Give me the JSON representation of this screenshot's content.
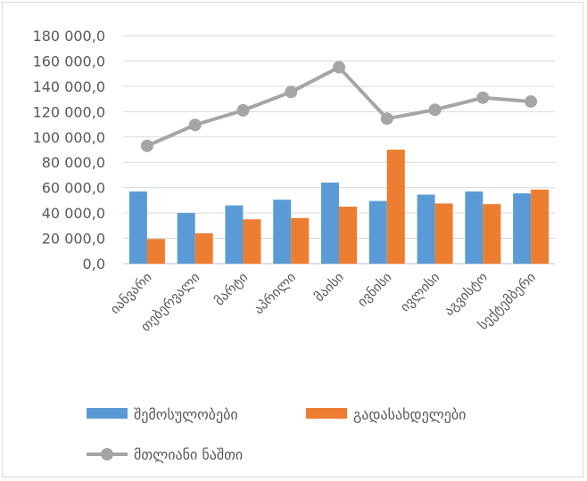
{
  "chart_data": {
    "type": "bar+line",
    "categories": [
      "იანვარი",
      "თებერვალი",
      "მარტი",
      "აპრილი",
      "მაისი",
      "ივნისი",
      "ივლისი",
      "აგვისტო",
      "სექტემბერი"
    ],
    "series": [
      {
        "name": "შემოსულობები",
        "type": "bar",
        "color": "#5b9bd5",
        "values": [
          57000,
          40000,
          46000,
          50500,
          64000,
          49500,
          54500,
          57000,
          55500
        ]
      },
      {
        "name": "გადასახდელები",
        "type": "bar",
        "color": "#ed7d31",
        "values": [
          19500,
          24000,
          35000,
          36000,
          45000,
          90000,
          47500,
          47000,
          58500
        ]
      },
      {
        "name": "მთლიანი ნაშთი",
        "type": "line",
        "color": "#a5a5a5",
        "values": [
          93000,
          109500,
          121000,
          135500,
          155000,
          114500,
          121500,
          131000,
          128000
        ]
      }
    ],
    "ylim": [
      0,
      180000
    ],
    "yticks": [
      0,
      20000,
      40000,
      60000,
      80000,
      100000,
      120000,
      140000,
      160000,
      180000
    ],
    "ytick_labels": [
      "0,0",
      "20 000,0",
      "40 000,0",
      "60 000,0",
      "80 000,0",
      "100 000,0",
      "120 000,0",
      "140 000,0",
      "160 000,0",
      "180 000,0"
    ],
    "grid": true,
    "legend_position": "bottom"
  }
}
